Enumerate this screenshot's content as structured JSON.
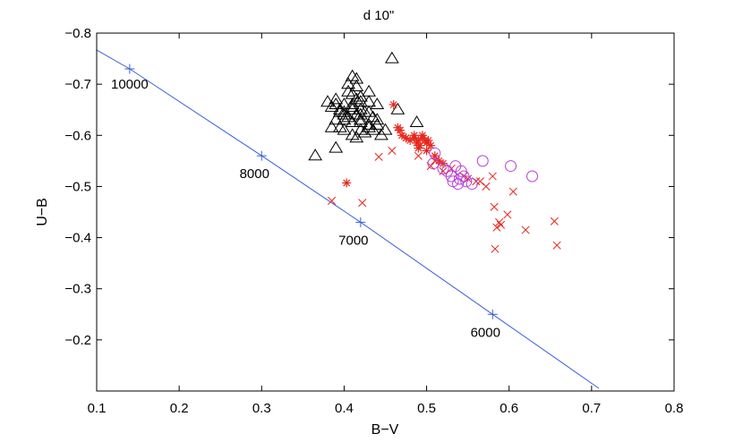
{
  "chart_data": {
    "type": "scatter",
    "title": "d 10\"",
    "xlabel": "B−V",
    "ylabel": "U−B",
    "xlim": [
      0.1,
      0.8
    ],
    "ylim": [
      -0.8,
      -0.1
    ],
    "y_reversed": true,
    "x_ticks": [
      0.1,
      0.2,
      0.3,
      0.4,
      0.5,
      0.6,
      0.7,
      0.8
    ],
    "x_tick_labels": [
      "0.1",
      "0.2",
      "0.3",
      "0.4",
      "0.5",
      "0.6",
      "0.7",
      "0.8"
    ],
    "y_ticks": [
      -0.8,
      -0.7,
      -0.6,
      -0.5,
      -0.4,
      -0.3,
      -0.2
    ],
    "y_tick_labels": [
      "−0.8",
      "−0.7",
      "−0.6",
      "−0.5",
      "−0.4",
      "−0.3",
      "−0.2"
    ],
    "grid": false,
    "colors": {
      "line": "#3a5fdc",
      "cross": "#e8251b",
      "asterisk": "#e8251b",
      "circle": "#b43fd6",
      "triangle": "#000000"
    },
    "line": {
      "name": "temperature sequence",
      "x": [
        0.1,
        0.14,
        0.3,
        0.42,
        0.58,
        0.709
      ],
      "y": [
        -0.767,
        -0.73,
        -0.56,
        -0.43,
        -0.25,
        -0.105
      ]
    },
    "line_markers": [
      {
        "x": 0.14,
        "y": -0.73,
        "label": "10000"
      },
      {
        "x": 0.3,
        "y": -0.56,
        "label": "8000"
      },
      {
        "x": 0.42,
        "y": -0.43,
        "label": "7000"
      },
      {
        "x": 0.58,
        "y": -0.25,
        "label": "6000"
      }
    ],
    "series": [
      {
        "name": "triangles",
        "marker": "triangle",
        "x": [
          0.458,
          0.41,
          0.415,
          0.405,
          0.415,
          0.43,
          0.41,
          0.42,
          0.39,
          0.42,
          0.4,
          0.44,
          0.385,
          0.41,
          0.42,
          0.395,
          0.43,
          0.4,
          0.415,
          0.42,
          0.405,
          0.435,
          0.39,
          0.4,
          0.41,
          0.42,
          0.43,
          0.44,
          0.385,
          0.395,
          0.42,
          0.425,
          0.41,
          0.435,
          0.41,
          0.4,
          0.42,
          0.38,
          0.45,
          0.395,
          0.415,
          0.405,
          0.43,
          0.39,
          0.41,
          0.44,
          0.425,
          0.42,
          0.43,
          0.365,
          0.39,
          0.465,
          0.488,
          0.4,
          0.415,
          0.445
        ],
        "y": [
          -0.75,
          -0.715,
          -0.71,
          -0.7,
          -0.695,
          -0.685,
          -0.68,
          -0.675,
          -0.67,
          -0.665,
          -0.66,
          -0.66,
          -0.655,
          -0.655,
          -0.65,
          -0.65,
          -0.645,
          -0.645,
          -0.64,
          -0.64,
          -0.635,
          -0.635,
          -0.63,
          -0.63,
          -0.625,
          -0.625,
          -0.62,
          -0.62,
          -0.615,
          -0.615,
          -0.61,
          -0.605,
          -0.6,
          -0.61,
          -0.66,
          -0.64,
          -0.63,
          -0.665,
          -0.61,
          -0.645,
          -0.67,
          -0.685,
          -0.615,
          -0.66,
          -0.65,
          -0.63,
          -0.645,
          -0.675,
          -0.665,
          -0.56,
          -0.575,
          -0.65,
          -0.625,
          -0.61,
          -0.595,
          -0.6
        ]
      },
      {
        "name": "asterisks",
        "marker": "asterisk",
        "x": [
          0.46,
          0.465,
          0.468,
          0.47,
          0.475,
          0.48,
          0.485,
          0.488,
          0.49,
          0.492,
          0.495,
          0.498,
          0.5,
          0.502,
          0.505,
          0.49,
          0.51,
          0.515,
          0.52,
          0.5,
          0.485,
          0.403,
          0.475,
          0.495
        ],
        "y": [
          -0.66,
          -0.615,
          -0.61,
          -0.6,
          -0.595,
          -0.59,
          -0.595,
          -0.585,
          -0.59,
          -0.58,
          -0.595,
          -0.59,
          -0.585,
          -0.59,
          -0.58,
          -0.575,
          -0.56,
          -0.55,
          -0.545,
          -0.57,
          -0.6,
          -0.507,
          -0.595,
          -0.6
        ]
      },
      {
        "name": "crosses",
        "marker": "cross",
        "x": [
          0.385,
          0.422,
          0.442,
          0.458,
          0.49,
          0.505,
          0.51,
          0.52,
          0.53,
          0.545,
          0.55,
          0.56,
          0.565,
          0.572,
          0.58,
          0.582,
          0.585,
          0.59,
          0.598,
          0.605,
          0.62,
          0.655,
          0.658,
          0.583,
          0.588
        ],
        "y": [
          -0.472,
          -0.468,
          -0.558,
          -0.57,
          -0.56,
          -0.54,
          -0.55,
          -0.53,
          -0.535,
          -0.52,
          -0.515,
          -0.51,
          -0.51,
          -0.5,
          -0.52,
          -0.46,
          -0.42,
          -0.425,
          -0.445,
          -0.49,
          -0.415,
          -0.432,
          -0.385,
          -0.378,
          -0.43
        ]
      },
      {
        "name": "circles",
        "marker": "circle",
        "x": [
          0.508,
          0.52,
          0.525,
          0.53,
          0.532,
          0.535,
          0.538,
          0.54,
          0.545,
          0.548,
          0.555,
          0.568,
          0.602,
          0.628,
          0.51,
          0.542
        ],
        "y": [
          -0.545,
          -0.535,
          -0.53,
          -0.52,
          -0.51,
          -0.54,
          -0.505,
          -0.515,
          -0.52,
          -0.51,
          -0.505,
          -0.55,
          -0.54,
          -0.52,
          -0.565,
          -0.53
        ]
      }
    ]
  }
}
